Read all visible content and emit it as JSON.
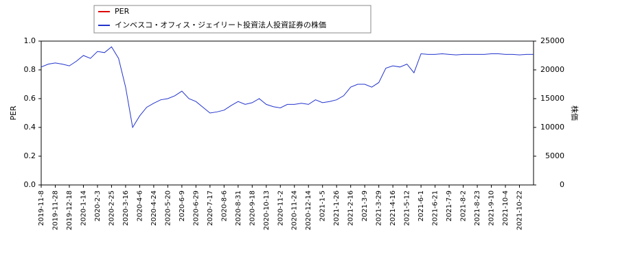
{
  "chart_data": {
    "type": "line",
    "x": [
      "2019-11-8",
      null,
      "2019-11-28",
      null,
      "2019-12-18",
      null,
      "2020-1-14",
      null,
      "2020-2-3",
      null,
      "2020-2-25",
      null,
      "2020-3-16",
      null,
      "2020-4-6",
      null,
      "2020-4-24",
      null,
      "2020-5-20",
      null,
      "2020-6-9",
      null,
      "2020-6-29",
      null,
      "2020-7-17",
      null,
      "2020-8-6",
      null,
      "2020-8-31",
      null,
      "2020-9-18",
      null,
      "2020-10-13",
      null,
      "2020-11-2",
      null,
      "2020-11-24",
      null,
      "2020-12-14",
      null,
      "2021-1-5",
      null,
      "2021-1-26",
      null,
      "2021-2-16",
      null,
      "2021-3-9",
      null,
      "2021-3-29",
      null,
      "2021-4-16",
      null,
      "2021-5-12",
      null,
      "2021-6-1",
      null,
      "2021-6-21",
      null,
      "2021-7-9",
      null,
      "2021-8-2",
      null,
      "2021-8-23",
      null,
      "2021-9-10",
      null,
      "2021-10-4",
      null,
      "2021-10-22",
      null,
      null
    ],
    "ylabel": "PER",
    "y2label": "株価",
    "ylim": [
      0,
      1.0
    ],
    "yticks": [
      {
        "value": 0,
        "label": "0.0"
      },
      0.2,
      0.4,
      0.6,
      0.8,
      {
        "value": 1.0,
        "label": "1.0"
      }
    ],
    "y2lim": [
      0,
      25000
    ],
    "y2ticks": [
      0,
      5000,
      10000,
      15000,
      20000,
      25000
    ],
    "series": [
      {
        "name": "PER",
        "color": "#dd0000",
        "values": [
          null,
          null,
          null,
          null,
          null,
          null,
          null,
          null,
          null,
          null,
          null,
          null,
          null,
          null,
          null,
          null,
          null,
          null,
          null,
          null,
          null,
          null,
          null,
          null,
          null,
          null,
          null,
          null,
          null,
          null,
          null,
          null,
          null,
          null,
          null,
          null,
          null,
          null,
          null,
          null,
          null,
          null,
          null,
          null,
          null,
          null,
          null,
          null,
          null,
          null,
          null,
          null,
          null,
          null,
          null,
          null,
          null,
          null,
          null,
          null,
          null,
          null,
          null,
          null,
          null,
          null,
          null,
          null,
          null,
          null,
          null
        ]
      },
      {
        "name": "インベスコ・オフィス・ジェイリート投資法人投資証券の株価",
        "color": "#2233cc",
        "axis": "y2",
        "values": [
          20500,
          21000,
          21200,
          21000,
          20700,
          21500,
          22500,
          22000,
          23200,
          23000,
          24000,
          22000,
          17000,
          10000,
          12000,
          13500,
          14200,
          14800,
          15000,
          15500,
          16300,
          15000,
          14500,
          13500,
          12500,
          12700,
          13000,
          13800,
          14500,
          14000,
          14300,
          15000,
          14000,
          13600,
          13400,
          14000,
          14000,
          14200,
          14000,
          14800,
          14300,
          14500,
          14800,
          15500,
          17000,
          17500,
          17500,
          17000,
          17800,
          20300,
          20700,
          20500,
          21000,
          19500,
          22800,
          22700,
          22700,
          22800,
          22700,
          22600,
          22700,
          22700,
          22700,
          22700,
          22800,
          22800,
          22700,
          22700,
          22600,
          22700,
          22700
        ]
      }
    ]
  }
}
